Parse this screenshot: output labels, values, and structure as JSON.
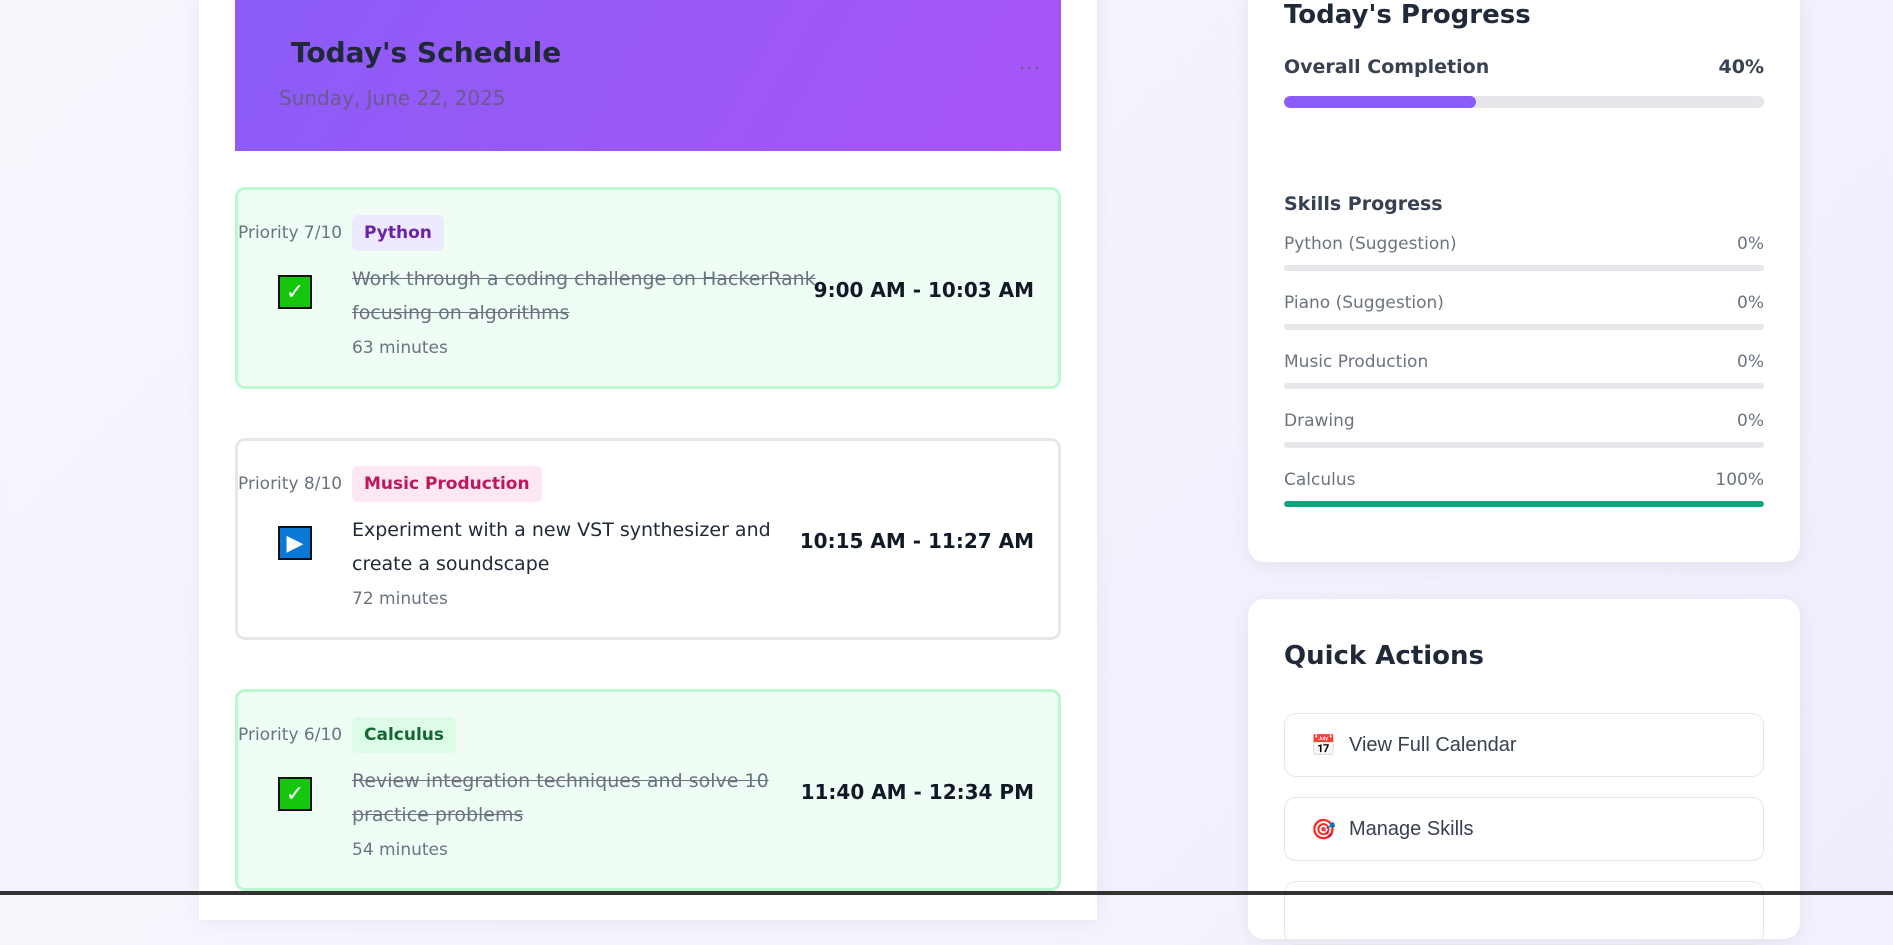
{
  "schedule": {
    "title": "Today's Schedule",
    "date": "Sunday, June 22, 2025",
    "menu": "...",
    "tasks": [
      {
        "tag": "Python",
        "priority": "Priority 7/10",
        "title": "Work through a coding challenge on HackerRank focusing on algorithms",
        "duration": "63 minutes",
        "time": "9:00 AM - 10:03 AM",
        "status": "completed",
        "tag_bg": "#ede9fe",
        "tag_color": "#6b21a8"
      },
      {
        "tag": "Music Production",
        "priority": "Priority 8/10",
        "title": "Experiment with a new VST synthesizer and create a soundscape",
        "duration": "72 minutes",
        "time": "10:15 AM - 11:27 AM",
        "status": "in-progress",
        "tag_bg": "#fce7f3",
        "tag_color": "#be185d"
      },
      {
        "tag": "Calculus",
        "priority": "Priority 6/10",
        "title": "Review integration techniques and solve 10 practice problems",
        "duration": "54 minutes",
        "time": "11:40 AM - 12:34 PM",
        "status": "completed",
        "tag_bg": "#dcfce7",
        "tag_color": "#166534"
      }
    ]
  },
  "progress": {
    "title": "Today's Progress",
    "overall_label": "Overall Completion",
    "overall_value": "40%",
    "overall_fraction": 0.4,
    "accent": "#8b5cf6",
    "skills_title": "Skills Progress",
    "skills": [
      {
        "name": "Python (Suggestion)",
        "value": "0%",
        "fraction": 0
      },
      {
        "name": "Piano (Suggestion)",
        "value": "0%",
        "fraction": 0
      },
      {
        "name": "Music Production",
        "value": "0%",
        "fraction": 0
      },
      {
        "name": "Drawing",
        "value": "0%",
        "fraction": 0
      },
      {
        "name": "Calculus",
        "value": "100%",
        "fraction": 1
      }
    ],
    "skill_color": "#10a37f"
  },
  "quick_actions": {
    "title": "Quick Actions",
    "items": [
      {
        "icon": "calendar-icon",
        "glyph": "📅",
        "label": "View Full Calendar"
      },
      {
        "icon": "target-icon",
        "glyph": "🎯",
        "label": "Manage Skills"
      },
      {
        "icon": "",
        "glyph": "",
        "label": ""
      }
    ]
  }
}
